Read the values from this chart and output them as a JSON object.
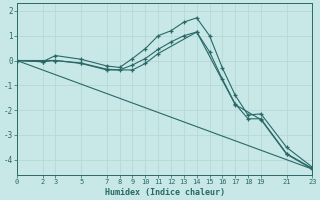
{
  "xlabel": "Humidex (Indice chaleur)",
  "ylabel": "",
  "background_color": "#c8e8e8",
  "grid_color": "#b8d8d8",
  "line_color": "#2a6868",
  "xlim": [
    0,
    23
  ],
  "ylim": [
    -4.6,
    2.3
  ],
  "yticks": [
    2,
    1,
    0,
    -1,
    -2,
    -3,
    -4
  ],
  "xticks": [
    0,
    2,
    3,
    5,
    7,
    8,
    9,
    10,
    11,
    12,
    13,
    14,
    15,
    16,
    17,
    18,
    19,
    21,
    23
  ],
  "line1_x": [
    0,
    2,
    3,
    5,
    7,
    8,
    9,
    10,
    11,
    12,
    13,
    14,
    15,
    16,
    17,
    18,
    19,
    21,
    23
  ],
  "line1_y": [
    0.0,
    -0.05,
    0.2,
    0.05,
    -0.22,
    -0.28,
    0.08,
    0.48,
    1.0,
    1.2,
    1.55,
    1.72,
    1.0,
    -0.3,
    -1.4,
    -2.2,
    -2.15,
    -3.5,
    -4.3
  ],
  "line2_x": [
    0,
    2,
    3,
    5,
    7,
    8,
    9,
    10,
    11,
    12,
    13,
    14,
    15,
    16,
    17,
    18,
    19,
    21,
    23
  ],
  "line2_y": [
    0.0,
    -0.05,
    0.0,
    -0.1,
    -0.35,
    -0.38,
    -0.18,
    0.08,
    0.45,
    0.75,
    1.0,
    1.15,
    0.35,
    -0.75,
    -1.75,
    -2.35,
    -2.35,
    -3.75,
    -4.35
  ],
  "line3_x": [
    0,
    3,
    5,
    7,
    9,
    10,
    11,
    14,
    17,
    19,
    21,
    23
  ],
  "line3_y": [
    0.0,
    0.0,
    -0.12,
    -0.38,
    -0.38,
    -0.12,
    0.28,
    1.15,
    -1.78,
    -2.38,
    -3.78,
    -4.38
  ],
  "line4_x": [
    0,
    23
  ],
  "line4_y": [
    0.0,
    -4.38
  ]
}
